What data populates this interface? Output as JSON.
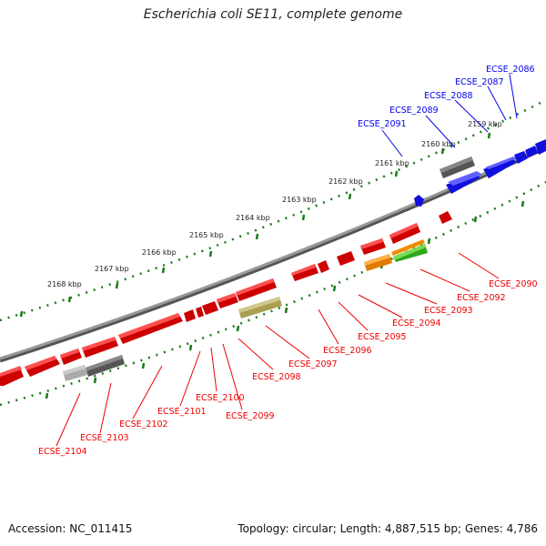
{
  "title": "Escherichia coli SE11, complete genome",
  "accession": "Accession: NC_011415",
  "topology": "Topology: circular; Length: 4,887,515 bp; Genes: 4,786",
  "ticks": [
    "2159 kbp",
    "2160 kbp",
    "2161 kbp",
    "2162 kbp",
    "2163 kbp",
    "2164 kbp",
    "2165 kbp",
    "2166 kbp",
    "2167 kbp",
    "2168 kbp"
  ],
  "genes_upper": [
    "ECSE_2086",
    "ECSE_2087",
    "ECSE_2088",
    "ECSE_2089",
    "ECSE_2091"
  ],
  "genes_lower": [
    "ECSE_2090",
    "ECSE_2092",
    "ECSE_2093",
    "ECSE_2094",
    "ECSE_2095",
    "ECSE_2096",
    "ECSE_2097",
    "ECSE_2098",
    "ECSE_2099",
    "ECSE_2100",
    "ECSE_2101",
    "ECSE_2102",
    "ECSE_2103",
    "ECSE_2104"
  ],
  "colors": {
    "forward": "#0000ee",
    "reverse": "#ee0000",
    "pseudo": "#666666",
    "backbone": "#888888",
    "tick": "#1a7a1a",
    "olive": "#b8b070",
    "orange": "#f08c00",
    "green": "#44bb33"
  }
}
